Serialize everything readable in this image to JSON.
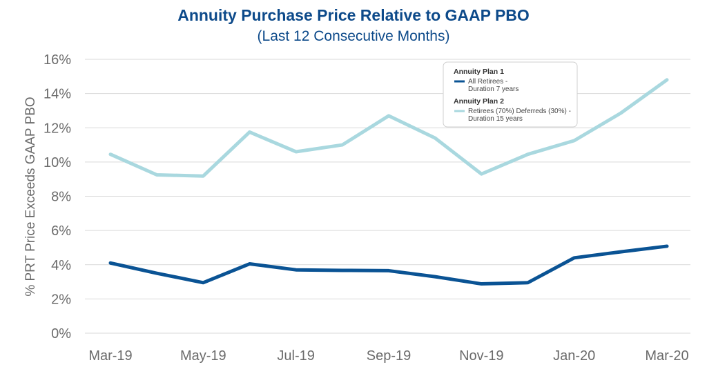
{
  "colors": {
    "title": "#0d4a8a",
    "grid": "#d9d9d9",
    "axis_text": "#6b6b6b",
    "plan1": "#0a5394",
    "plan2": "#a9d8df"
  },
  "chart_data": {
    "type": "line",
    "title": "Annuity Purchase Price Relative to GAAP PBO",
    "subtitle": "(Last 12 Consecutive Months)",
    "xlabel": "",
    "ylabel": "% PRT Price Exceeds GAAP PBO",
    "ylim": [
      0,
      16
    ],
    "yticks": [
      0,
      2,
      4,
      6,
      8,
      10,
      12,
      14,
      16
    ],
    "ytick_labels": [
      "0%",
      "2%",
      "4%",
      "6%",
      "8%",
      "10%",
      "12%",
      "14%",
      "16%"
    ],
    "x": [
      "Mar-19",
      "Apr-19",
      "May-19",
      "Jun-19",
      "Jul-19",
      "Aug-19",
      "Sep-19",
      "Oct-19",
      "Nov-19",
      "Dec-19",
      "Jan-20",
      "Feb-20",
      "Mar-20"
    ],
    "xtick_labels": [
      "Mar-19",
      "May-19",
      "Jul-19",
      "Sep-19",
      "Nov-19",
      "Jan-20",
      "Mar-20"
    ],
    "grid": true,
    "legend_position": "top-right",
    "series": [
      {
        "name": "Annuity Plan 1",
        "legend_lines": [
          "All Retirees -",
          "Duration 7 years"
        ],
        "color": "#0a5394",
        "values": [
          4.1,
          3.5,
          2.95,
          4.05,
          3.7,
          3.67,
          3.65,
          3.3,
          2.88,
          2.95,
          4.4,
          4.75,
          5.08
        ]
      },
      {
        "name": "Annuity Plan 2",
        "legend_lines": [
          "Retirees (70%) Deferreds (30%) -",
          "Duration 15 years"
        ],
        "color": "#a9d8df",
        "values": [
          10.45,
          9.25,
          9.18,
          11.75,
          10.6,
          11.0,
          12.7,
          11.4,
          9.3,
          10.45,
          11.25,
          12.85,
          14.8
        ]
      }
    ]
  }
}
